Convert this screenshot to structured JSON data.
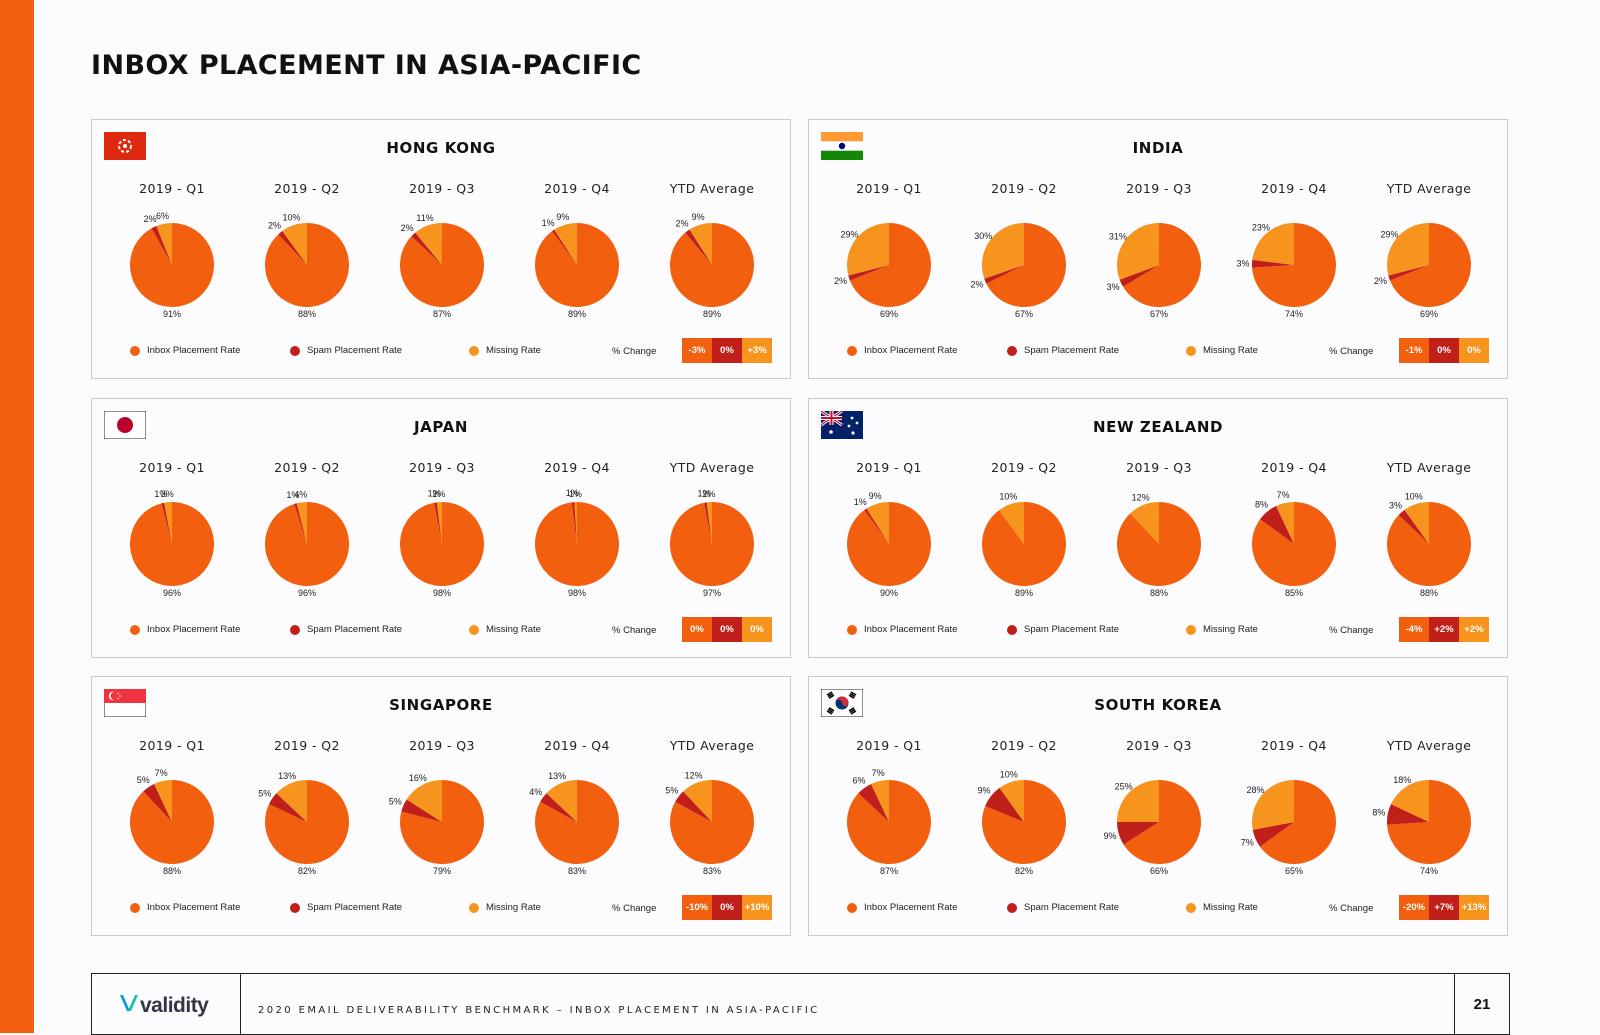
{
  "page": {
    "title": "INBOX PLACEMENT IN ASIA-PACIFIC",
    "footer_text": "2020 EMAIL DELIVERABILITY BENCHMARK – INBOX PLACEMENT IN ASIA-PACIFIC",
    "page_number": "21",
    "logo_text": "validity"
  },
  "colors": {
    "inbox": "#f2600f",
    "spam": "#c11f1a",
    "missing": "#f7941d",
    "accent_bar": "#f2600f"
  },
  "legend": {
    "inbox_label": "Inbox Placement Rate",
    "spam_label": "Spam Placement Rate",
    "missing_label": "Missing Rate",
    "change_label": "% Change"
  },
  "chart_data": [
    {
      "type": "pie",
      "country": "HONG KONG",
      "flag": "hong-kong-flag",
      "categories": [
        "2019 - Q1",
        "2019 - Q2",
        "2019 - Q3",
        "2019 - Q4",
        "YTD Average"
      ],
      "series": [
        {
          "name": "Inbox Placement Rate",
          "values": [
            91,
            88,
            87,
            89,
            89
          ]
        },
        {
          "name": "Spam Placement Rate",
          "values": [
            2,
            2,
            2,
            1,
            2
          ]
        },
        {
          "name": "Missing Rate",
          "values": [
            6,
            10,
            11,
            9,
            9
          ]
        }
      ],
      "percent_change": [
        "-3%",
        "0%",
        "+3%"
      ]
    },
    {
      "type": "pie",
      "country": "INDIA",
      "flag": "india-flag",
      "categories": [
        "2019 - Q1",
        "2019 - Q2",
        "2019 - Q3",
        "2019 - Q4",
        "YTD Average"
      ],
      "series": [
        {
          "name": "Inbox Placement Rate",
          "values": [
            69,
            67,
            67,
            74,
            69
          ]
        },
        {
          "name": "Spam Placement Rate",
          "values": [
            2,
            2,
            3,
            3,
            2
          ]
        },
        {
          "name": "Missing Rate",
          "values": [
            29,
            30,
            31,
            23,
            29
          ]
        }
      ],
      "percent_change": [
        "-1%",
        "0%",
        "0%"
      ]
    },
    {
      "type": "pie",
      "country": "JAPAN",
      "flag": "japan-flag",
      "categories": [
        "2019 - Q1",
        "2019 - Q2",
        "2019 - Q3",
        "2019 - Q4",
        "YTD Average"
      ],
      "series": [
        {
          "name": "Inbox Placement Rate",
          "values": [
            96,
            96,
            98,
            98,
            97
          ]
        },
        {
          "name": "Spam Placement Rate",
          "values": [
            1,
            1,
            1,
            1,
            1
          ]
        },
        {
          "name": "Missing Rate",
          "values": [
            3,
            4,
            2,
            1,
            2
          ]
        }
      ],
      "percent_change": [
        "0%",
        "0%",
        "0%"
      ]
    },
    {
      "type": "pie",
      "country": "NEW ZEALAND",
      "flag": "new-zealand-flag",
      "categories": [
        "2019 - Q1",
        "2019 - Q2",
        "2019 - Q3",
        "2019 - Q4",
        "YTD Average"
      ],
      "series": [
        {
          "name": "Inbox Placement Rate",
          "values": [
            90,
            89,
            88,
            85,
            88
          ]
        },
        {
          "name": "Spam Placement Rate",
          "values": [
            1,
            null,
            null,
            8,
            3
          ]
        },
        {
          "name": "Missing Rate",
          "values": [
            9,
            10,
            12,
            7,
            10
          ]
        }
      ],
      "percent_change": [
        "-4%",
        "+2%",
        "+2%"
      ]
    },
    {
      "type": "pie",
      "country": "SINGAPORE",
      "flag": "singapore-flag",
      "categories": [
        "2019 - Q1",
        "2019 - Q2",
        "2019 - Q3",
        "2019 - Q4",
        "YTD Average"
      ],
      "series": [
        {
          "name": "Inbox Placement Rate",
          "values": [
            88,
            82,
            79,
            83,
            83
          ]
        },
        {
          "name": "Spam Placement Rate",
          "values": [
            5,
            5,
            5,
            4,
            5
          ]
        },
        {
          "name": "Missing Rate",
          "values": [
            7,
            13,
            16,
            13,
            12
          ]
        }
      ],
      "percent_change": [
        "-10%",
        "0%",
        "+10%"
      ]
    },
    {
      "type": "pie",
      "country": "SOUTH KOREA",
      "flag": "south-korea-flag",
      "categories": [
        "2019 - Q1",
        "2019 - Q2",
        "2019 - Q3",
        "2019 - Q4",
        "YTD Average"
      ],
      "series": [
        {
          "name": "Inbox Placement Rate",
          "values": [
            87,
            82,
            66,
            65,
            74
          ]
        },
        {
          "name": "Spam Placement Rate",
          "values": [
            6,
            9,
            9,
            7,
            8
          ]
        },
        {
          "name": "Missing Rate",
          "values": [
            7,
            10,
            25,
            28,
            18
          ]
        }
      ],
      "percent_change": [
        "-20%",
        "+7%",
        "+13%"
      ]
    }
  ]
}
